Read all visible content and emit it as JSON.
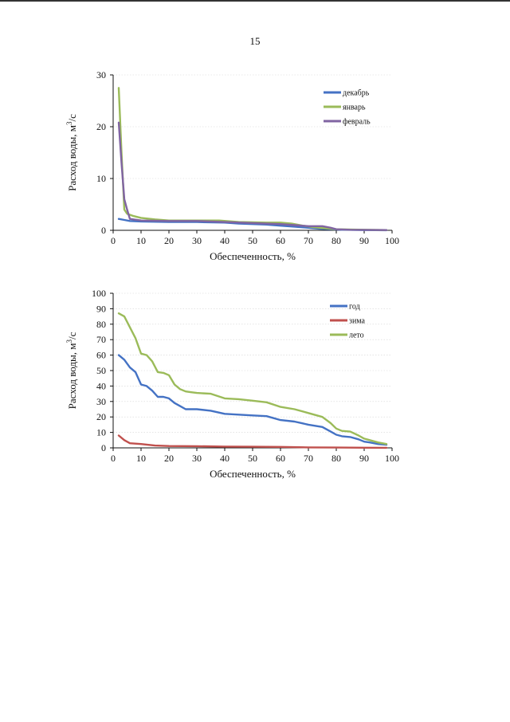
{
  "page": {
    "number": "15"
  },
  "chart_data": [
    {
      "type": "line",
      "title": "",
      "xlabel": "Обеспеченность, %",
      "ylabel_main": "Расход воды, м",
      "ylabel_sup": "3",
      "ylabel_tail": "/с",
      "xlim": [
        0,
        100
      ],
      "ylim": [
        0,
        30
      ],
      "xticks": [
        0,
        10,
        20,
        30,
        40,
        50,
        60,
        70,
        80,
        90,
        100
      ],
      "yticks": [
        0,
        10,
        20,
        30
      ],
      "grid": true,
      "legend_position": "top-right",
      "series": [
        {
          "name": "декабрь",
          "color": "#4472C4",
          "x": [
            2,
            4,
            6,
            10,
            20,
            30,
            40,
            45,
            50,
            55,
            60,
            65,
            70,
            74,
            78,
            82,
            90,
            98
          ],
          "y": [
            2.2,
            2.0,
            1.8,
            1.7,
            1.6,
            1.6,
            1.5,
            1.3,
            1.2,
            1.1,
            0.9,
            0.7,
            0.5,
            0.3,
            0.2,
            0.1,
            0.05,
            0.02
          ]
        },
        {
          "name": "январь",
          "color": "#9BBB59",
          "x": [
            2,
            3,
            4,
            5,
            7,
            10,
            15,
            20,
            30,
            38,
            45,
            55,
            60,
            64,
            68,
            72,
            76,
            80,
            90,
            98
          ],
          "y": [
            27.5,
            15,
            4.0,
            3.2,
            2.8,
            2.4,
            2.1,
            1.9,
            1.9,
            1.9,
            1.6,
            1.5,
            1.5,
            1.3,
            0.9,
            0.6,
            0.4,
            0.2,
            0.1,
            0.05
          ]
        },
        {
          "name": "февраль",
          "color": "#8064A2",
          "x": [
            2,
            3,
            4,
            5,
            6,
            10,
            20,
            30,
            40,
            50,
            60,
            65,
            70,
            75,
            78,
            80,
            85,
            98
          ],
          "y": [
            20.8,
            13,
            6.0,
            4.0,
            2.2,
            1.9,
            1.8,
            1.8,
            1.6,
            1.4,
            1.2,
            1.0,
            0.8,
            0.8,
            0.5,
            0.2,
            0.1,
            0.05
          ]
        }
      ]
    },
    {
      "type": "line",
      "title": "",
      "xlabel": "Обеспеченность, %",
      "ylabel_main": "Расход воды, м",
      "ylabel_sup": "3",
      "ylabel_tail": "/с",
      "xlim": [
        0,
        100
      ],
      "ylim": [
        0,
        100
      ],
      "xticks": [
        0,
        10,
        20,
        30,
        40,
        50,
        60,
        70,
        80,
        90,
        100
      ],
      "yticks": [
        0,
        10,
        20,
        30,
        40,
        50,
        60,
        70,
        80,
        90,
        100
      ],
      "grid": true,
      "legend_position": "top-right",
      "series": [
        {
          "name": "год",
          "color": "#4472C4",
          "x": [
            2,
            4,
            6,
            8,
            10,
            12,
            14,
            16,
            18,
            20,
            22,
            24,
            26,
            28,
            30,
            35,
            40,
            45,
            50,
            55,
            60,
            65,
            70,
            75,
            78,
            80,
            82,
            85,
            88,
            90,
            92,
            95,
            98
          ],
          "y": [
            60,
            57,
            52,
            49,
            41,
            40,
            37,
            33,
            33,
            32,
            29,
            27,
            25,
            25,
            25,
            24,
            22,
            21.5,
            21,
            20.5,
            18,
            17,
            15,
            13.5,
            10.5,
            8.5,
            7.5,
            7,
            5.5,
            4,
            3.5,
            2.5,
            2
          ]
        },
        {
          "name": "зима",
          "color": "#C0504D",
          "x": [
            2,
            4,
            6,
            10,
            15,
            20,
            30,
            40,
            50,
            60,
            70,
            80,
            90,
            98
          ],
          "y": [
            8,
            5,
            3,
            2.5,
            1.5,
            1.2,
            1.1,
            0.8,
            0.7,
            0.6,
            0.3,
            0.2,
            0.1,
            0.05
          ]
        },
        {
          "name": "лето",
          "color": "#9BBB59",
          "x": [
            2,
            4,
            6,
            8,
            10,
            12,
            14,
            16,
            18,
            20,
            22,
            24,
            26,
            28,
            30,
            35,
            40,
            45,
            50,
            55,
            60,
            65,
            70,
            75,
            78,
            80,
            82,
            85,
            88,
            90,
            92,
            95,
            98
          ],
          "y": [
            87,
            85,
            78,
            71,
            61,
            60,
            56,
            49,
            48.5,
            47,
            41,
            38,
            36.5,
            36,
            35.5,
            35,
            32,
            31.5,
            30.5,
            29.5,
            26.5,
            25,
            22.5,
            20,
            16,
            12.5,
            11,
            10.5,
            8,
            6,
            5,
            3.5,
            2.5
          ]
        }
      ]
    }
  ]
}
